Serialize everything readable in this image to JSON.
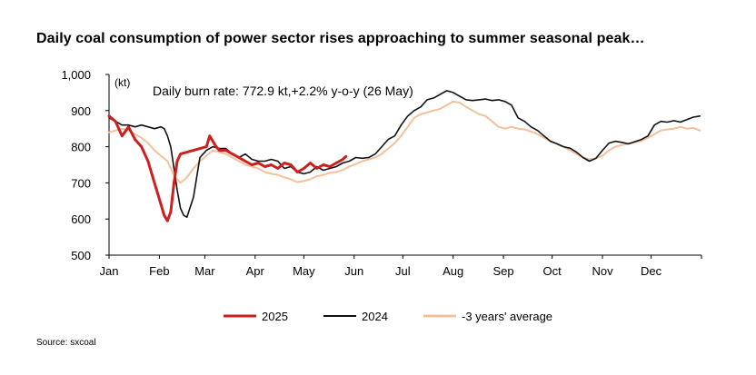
{
  "title": "Daily coal consumption of power sector rises approaching to summer seasonal peak…",
  "source": "Source: sxcoal",
  "chart_data": {
    "type": "line",
    "title": "Daily coal consumption of power sector rises approaching to summer seasonal peak…",
    "unit_label": "(kt)",
    "annotation": "Daily burn rate: 772.9 kt,+2.2% y-o-y (26 May)",
    "xlabel": "",
    "ylabel": "",
    "ylim": [
      500,
      1000
    ],
    "y_ticks": [
      500,
      600,
      700,
      800,
      900,
      1000
    ],
    "y_tick_labels": [
      "500",
      "600",
      "700",
      "800",
      "900",
      "1,000"
    ],
    "xlim": [
      0,
      365
    ],
    "x_months": [
      "Jan",
      "Feb",
      "Mar",
      "Apr",
      "May",
      "Jun",
      "Jul",
      "Aug",
      "Sep",
      "Oct",
      "Nov",
      "Dec"
    ],
    "grid": false,
    "legend_position": "bottom",
    "x_unit": "day of year",
    "series": [
      {
        "name": "2025",
        "color": "#cc1f1f",
        "x": [
          0,
          4,
          8,
          12,
          16,
          20,
          24,
          28,
          30,
          32,
          34,
          36,
          38,
          40,
          42,
          44,
          48,
          52,
          56,
          60,
          62,
          64,
          66,
          68,
          72,
          76,
          80,
          84,
          88,
          92,
          96,
          100,
          104,
          108,
          112,
          116,
          120,
          124,
          128,
          132,
          136,
          140,
          142,
          144,
          146
        ],
        "y": [
          885,
          870,
          830,
          855,
          820,
          800,
          760,
          700,
          670,
          640,
          610,
          595,
          620,
          700,
          760,
          780,
          785,
          790,
          795,
          800,
          830,
          815,
          800,
          790,
          790,
          780,
          770,
          760,
          750,
          755,
          745,
          750,
          740,
          755,
          750,
          730,
          740,
          755,
          740,
          750,
          745,
          755,
          760,
          765,
          773
        ]
      },
      {
        "name": "2024",
        "color": "#111111",
        "x": [
          0,
          4,
          8,
          12,
          16,
          20,
          24,
          28,
          32,
          34,
          36,
          38,
          40,
          42,
          44,
          46,
          48,
          52,
          56,
          60,
          64,
          68,
          72,
          76,
          80,
          84,
          88,
          92,
          96,
          100,
          104,
          108,
          112,
          116,
          120,
          124,
          128,
          132,
          136,
          140,
          144,
          148,
          152,
          156,
          160,
          164,
          168,
          172,
          176,
          180,
          184,
          188,
          192,
          196,
          200,
          204,
          208,
          212,
          216,
          220,
          224,
          228,
          232,
          236,
          240,
          244,
          248,
          252,
          256,
          260,
          264,
          268,
          272,
          276,
          280,
          284,
          288,
          292,
          296,
          300,
          304,
          308,
          312,
          316,
          320,
          324,
          328,
          332,
          336,
          340,
          344,
          348,
          352,
          356,
          360,
          364
        ],
        "y": [
          880,
          870,
          860,
          860,
          855,
          860,
          855,
          850,
          855,
          850,
          830,
          800,
          740,
          680,
          630,
          610,
          605,
          660,
          770,
          790,
          800,
          795,
          795,
          780,
          770,
          780,
          765,
          760,
          760,
          765,
          760,
          740,
          745,
          730,
          725,
          730,
          745,
          735,
          740,
          745,
          755,
          760,
          770,
          768,
          770,
          780,
          800,
          820,
          830,
          860,
          885,
          900,
          910,
          930,
          935,
          945,
          955,
          950,
          940,
          930,
          928,
          930,
          932,
          928,
          930,
          925,
          915,
          880,
          870,
          855,
          845,
          830,
          815,
          808,
          800,
          796,
          785,
          770,
          760,
          768,
          790,
          810,
          815,
          812,
          808,
          814,
          820,
          830,
          860,
          870,
          868,
          872,
          868,
          875,
          882,
          885
        ]
      },
      {
        "name": "-3 years' average",
        "color": "#f4c19c",
        "x": [
          0,
          4,
          8,
          12,
          16,
          20,
          24,
          28,
          32,
          36,
          40,
          44,
          48,
          52,
          56,
          60,
          64,
          68,
          72,
          76,
          80,
          84,
          88,
          92,
          96,
          100,
          104,
          108,
          112,
          116,
          120,
          124,
          128,
          132,
          136,
          140,
          144,
          148,
          152,
          156,
          160,
          164,
          168,
          172,
          176,
          180,
          184,
          188,
          192,
          196,
          200,
          204,
          208,
          212,
          216,
          220,
          224,
          228,
          232,
          236,
          240,
          244,
          248,
          252,
          256,
          260,
          264,
          268,
          272,
          276,
          280,
          284,
          288,
          292,
          296,
          300,
          304,
          308,
          312,
          316,
          320,
          324,
          328,
          332,
          336,
          340,
          344,
          348,
          352,
          356,
          360,
          364
        ],
        "y": [
          840,
          845,
          850,
          845,
          835,
          825,
          810,
          790,
          775,
          760,
          720,
          700,
          715,
          740,
          760,
          775,
          790,
          785,
          780,
          770,
          760,
          750,
          745,
          740,
          730,
          725,
          722,
          715,
          710,
          702,
          705,
          710,
          718,
          722,
          728,
          730,
          736,
          745,
          752,
          760,
          765,
          770,
          780,
          795,
          810,
          830,
          855,
          880,
          890,
          895,
          900,
          905,
          915,
          925,
          922,
          910,
          900,
          890,
          885,
          870,
          855,
          850,
          855,
          850,
          848,
          842,
          835,
          825,
          815,
          808,
          800,
          790,
          780,
          770,
          765,
          768,
          775,
          790,
          800,
          805,
          808,
          812,
          816,
          825,
          835,
          845,
          848,
          850,
          855,
          850,
          852,
          845
        ]
      }
    ]
  }
}
